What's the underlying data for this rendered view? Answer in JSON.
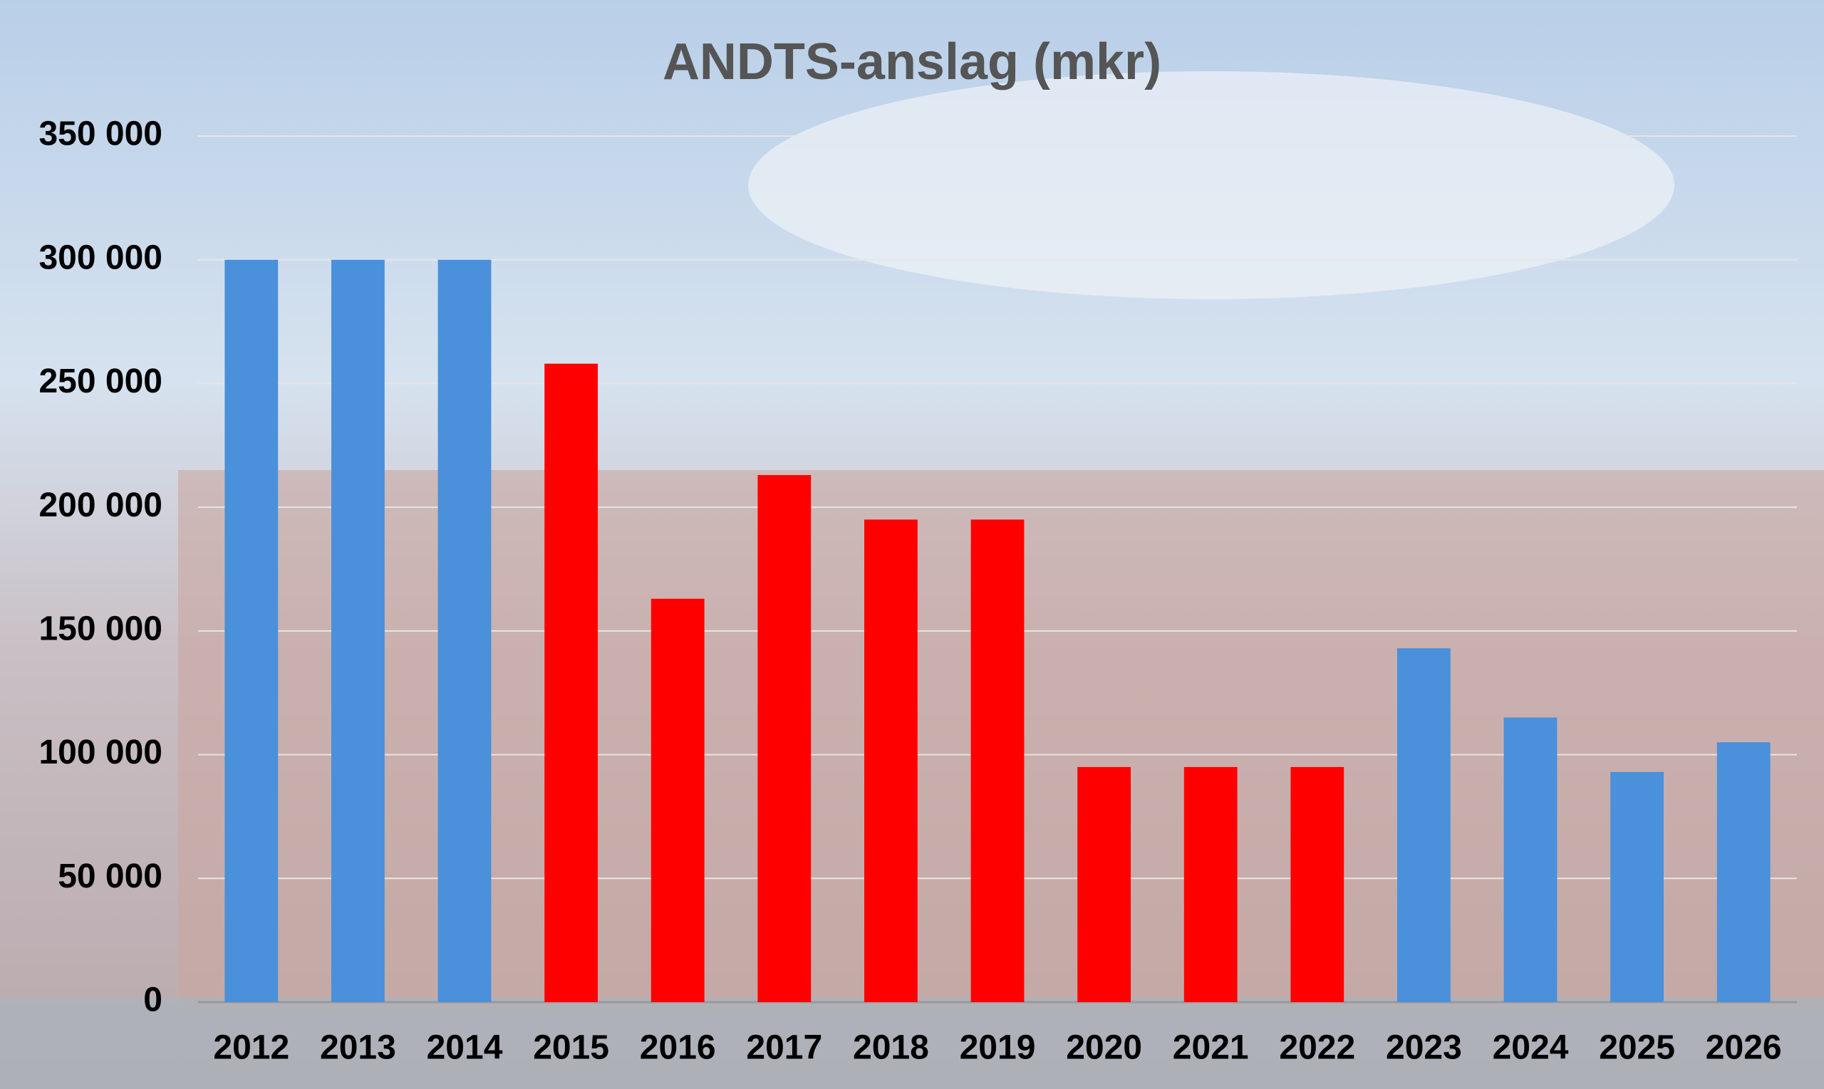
{
  "chart_data": {
    "type": "bar",
    "title": "ANDTS-anslag (mkr)",
    "categories": [
      "2012",
      "2013",
      "2014",
      "2015",
      "2016",
      "2017",
      "2018",
      "2019",
      "2020",
      "2021",
      "2022",
      "2023",
      "2024",
      "2025",
      "2026"
    ],
    "values": [
      300000,
      300000,
      300000,
      258000,
      163000,
      213000,
      195000,
      195000,
      95000,
      95000,
      95000,
      143000,
      115000,
      93000,
      105000
    ],
    "colors": [
      "#4a90db",
      "#4a90db",
      "#4a90db",
      "#ff0000",
      "#ff0000",
      "#ff0000",
      "#ff0000",
      "#ff0000",
      "#ff0000",
      "#ff0000",
      "#ff0000",
      "#4a90db",
      "#4a90db",
      "#4a90db",
      "#4a90db"
    ],
    "ylim": [
      0,
      350000
    ],
    "yticks": [
      0,
      {
        "value": 50000,
        "label": "50 000"
      },
      {
        "value": 100000,
        "label": "100 000"
      },
      {
        "value": 150000,
        "label": "150 000"
      },
      {
        "value": 200000,
        "label": "200 000"
      },
      {
        "value": 250000,
        "label": "250 000"
      },
      {
        "value": 300000,
        "label": "300 000"
      },
      {
        "value": 350000,
        "label": "350 000"
      }
    ],
    "grid": true
  }
}
